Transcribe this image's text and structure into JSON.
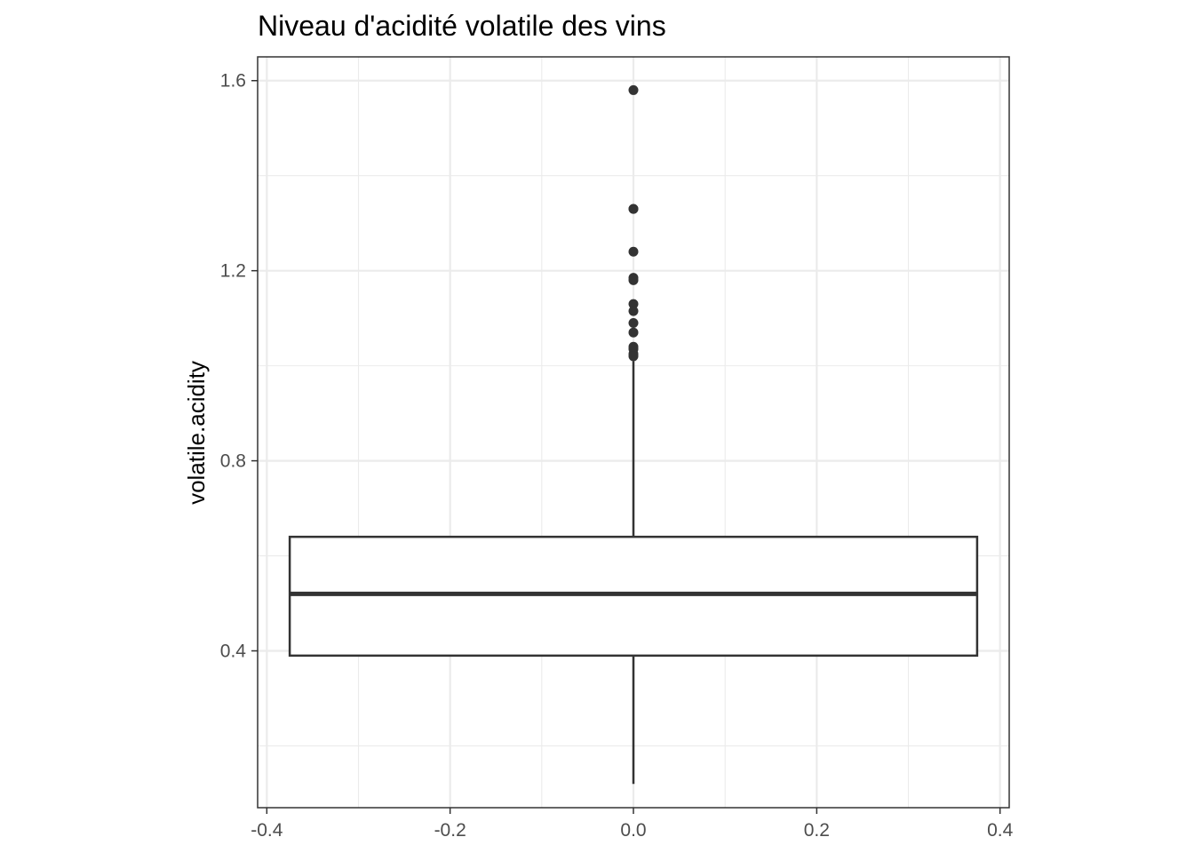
{
  "chart_data": {
    "type": "boxplot",
    "title": "Niveau d'acidité volatile des vins",
    "xlabel": "",
    "ylabel": "volatile.acidity",
    "xlim": [
      -0.41,
      0.41
    ],
    "ylim": [
      0.07,
      1.65
    ],
    "x_ticks": [
      -0.4,
      -0.2,
      0.0,
      0.2,
      0.4
    ],
    "x_tick_labels": [
      "-0.4",
      "-0.2",
      "0.0",
      "0.2",
      "0.4"
    ],
    "y_ticks": [
      0.4,
      0.8,
      1.2,
      1.6
    ],
    "y_tick_labels": [
      "0.4",
      "0.8",
      "1.2",
      "1.6"
    ],
    "grid": true,
    "box": {
      "x_center": 0.0,
      "x_min": -0.375,
      "x_max": 0.375,
      "whisker_low": 0.12,
      "q1": 0.39,
      "median": 0.52,
      "q3": 0.64,
      "whisker_high": 1.01
    },
    "outliers": [
      1.58,
      1.33,
      1.33,
      1.24,
      1.185,
      1.18,
      1.13,
      1.115,
      1.09,
      1.07,
      1.04,
      1.035,
      1.025,
      1.02
    ]
  }
}
